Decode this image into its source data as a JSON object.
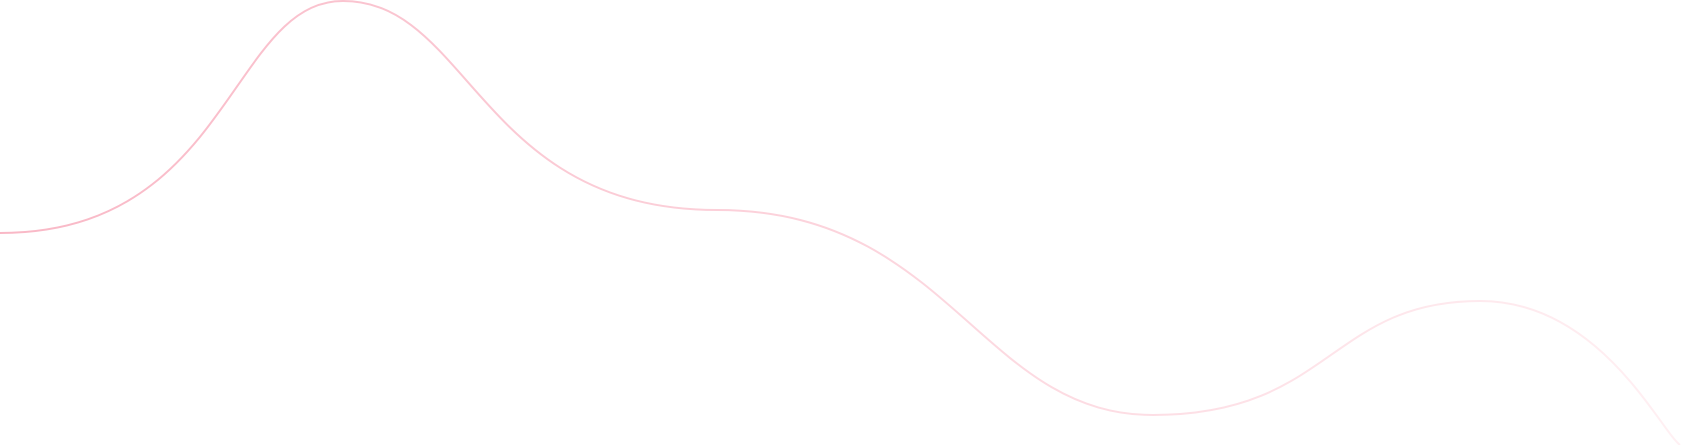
{
  "decoration": {
    "type": "wave-line",
    "stroke_color_start": "#f9b8c6",
    "stroke_color_end": "#fff0f3",
    "background": "#ffffff"
  }
}
